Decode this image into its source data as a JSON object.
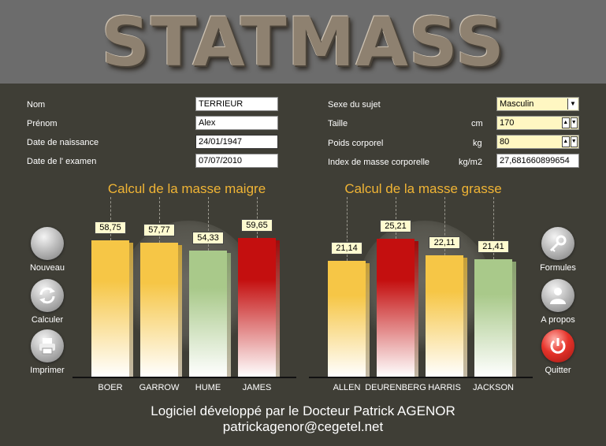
{
  "app_title": "STATMASS",
  "form": {
    "nom_label": "Nom",
    "nom_value": "TERRIEUR",
    "prenom_label": "Prénom",
    "prenom_value": "Alex",
    "naissance_label": "Date de naissance",
    "naissance_value": "24/01/1947",
    "examen_label": "Date de l' examen",
    "examen_value": "07/07/2010",
    "sexe_label": "Sexe du sujet",
    "sexe_value": "Masculin",
    "taille_label": "Taille",
    "taille_unit": "cm",
    "taille_value": "170",
    "poids_label": "Poids corporel",
    "poids_unit": "kg",
    "poids_value": "80",
    "imc_label": "Index de masse corporelle",
    "imc_unit": "kg/m2",
    "imc_value": "27,681660899654"
  },
  "buttons": {
    "nouveau": "Nouveau",
    "calculer": "Calculer",
    "imprimer": "Imprimer",
    "formules": "Formules",
    "apropos": "A propos",
    "quitter": "Quitter"
  },
  "chart_data": [
    {
      "type": "bar",
      "title": "Calcul de la masse maigre",
      "categories": [
        "BOER",
        "GARROW",
        "HUME",
        "JAMES"
      ],
      "values": [
        58.75,
        57.77,
        54.33,
        59.65
      ],
      "labels": [
        "58,75",
        "57,77",
        "54,33",
        "59,65"
      ],
      "colors": [
        "#f6c646",
        "#f6c646",
        "#a9c98a",
        "#c40f0f"
      ],
      "ylim": [
        0,
        70
      ]
    },
    {
      "type": "bar",
      "title": "Calcul de la masse grasse",
      "categories": [
        "ALLEN",
        "DEURENBERG",
        "HARRIS",
        "JACKSON"
      ],
      "values": [
        21.14,
        25.21,
        22.11,
        21.41
      ],
      "labels": [
        "21,14",
        "25,21",
        "22,11",
        "21,41"
      ],
      "colors": [
        "#f6c646",
        "#c40f0f",
        "#f6c646",
        "#a9c98a"
      ],
      "ylim": [
        0,
        29.6
      ]
    }
  ],
  "footer": {
    "line1": "Logiciel développé par le Docteur Patrick AGENOR",
    "line2": "patrickagenor@cegetel.net"
  }
}
